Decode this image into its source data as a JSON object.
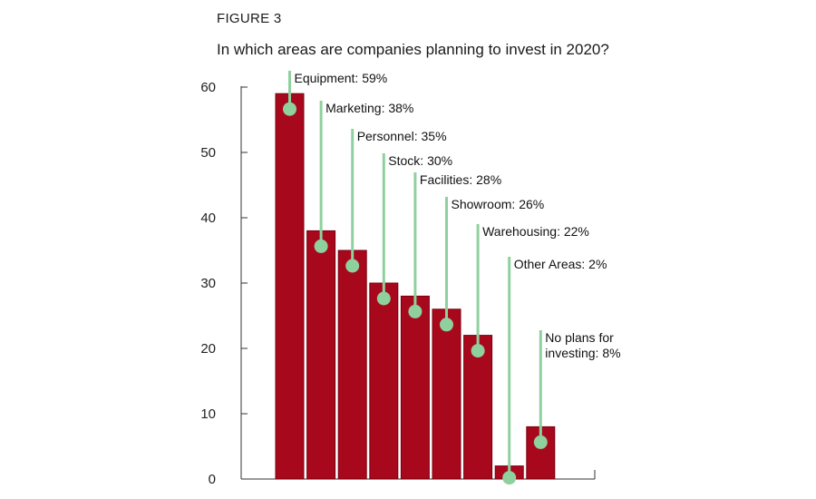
{
  "figure_label": "FIGURE 3",
  "chart_data": {
    "type": "bar",
    "title": "In which areas are companies planning to invest in 2020?",
    "xlabel": "",
    "ylabel": "",
    "ylim": [
      0,
      60
    ],
    "yticks": [
      "0",
      "10",
      "20",
      "30",
      "40",
      "50",
      "60"
    ],
    "grid": false,
    "categories": [
      "Equipment",
      "Marketing",
      "Personnel",
      "Stock",
      "Facilities",
      "Showroom",
      "Warehousing",
      "Other Areas",
      "No plans for investing"
    ],
    "values": [
      59,
      38,
      35,
      30,
      28,
      26,
      22,
      2,
      8
    ],
    "annotations": [
      [
        "Equipment: 59%"
      ],
      [
        "Marketing: 38%"
      ],
      [
        "Personnel: 35%"
      ],
      [
        "Stock: 30%"
      ],
      [
        "Facilities: 28%"
      ],
      [
        "Showroom: 26%"
      ],
      [
        "Warehousing: 22%"
      ],
      [
        "Other Areas: 2%"
      ],
      [
        "No plans for",
        "investing: 8%"
      ]
    ],
    "colors": {
      "bar": "#a8081c",
      "bar_edge": "#7a0010",
      "marker": "#8fd19e",
      "axis": "#333333"
    }
  }
}
